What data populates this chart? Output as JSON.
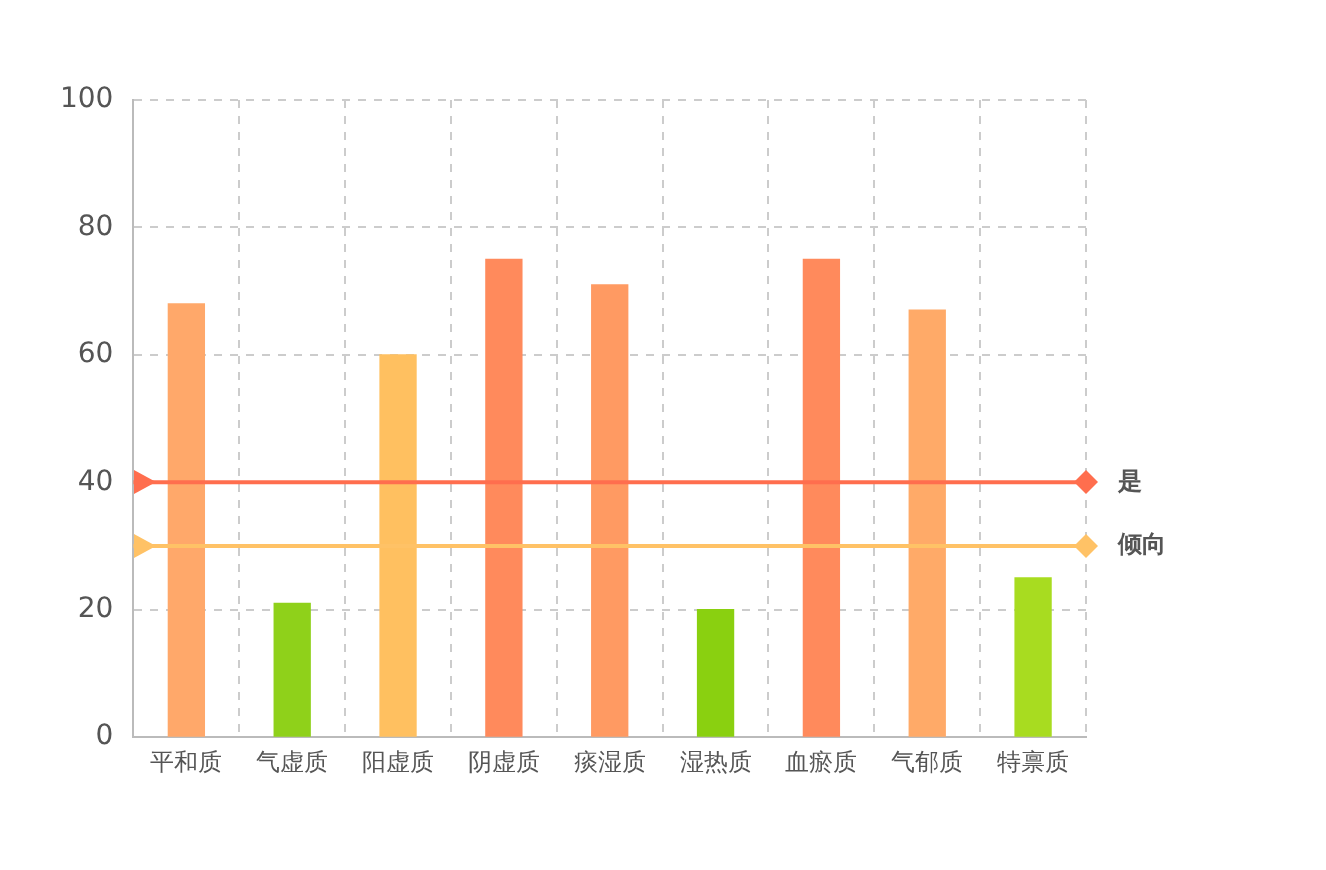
{
  "chart_data": {
    "type": "bar",
    "categories": [
      "平和质",
      "气虚质",
      "阳虚质",
      "阴虚质",
      "痰湿质",
      "湿热质",
      "血瘀质",
      "气郁质",
      "特禀质"
    ],
    "values": [
      68,
      21,
      60,
      75,
      71,
      20,
      75,
      67,
      25
    ],
    "colors": [
      "#ffa86a",
      "#8fd11a",
      "#ffc060",
      "#ff8a5c",
      "#ff9a62",
      "#8ad010",
      "#ff8a5c",
      "#ffaa68",
      "#a8dc20"
    ],
    "ylim": [
      0,
      100
    ],
    "yticks": [
      0,
      20,
      40,
      60,
      80,
      100
    ],
    "grid": true,
    "ref_lines": [
      {
        "axis": "y",
        "value": 40,
        "label": "是",
        "color": "#ff6e4e"
      },
      {
        "axis": "y",
        "value": 30,
        "label": "倾向",
        "color": "#ffc266"
      }
    ]
  }
}
